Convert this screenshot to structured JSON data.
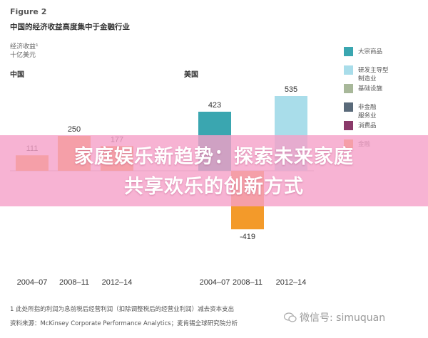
{
  "figure": {
    "label": "Figure 2",
    "title": "中国的经济收益高度集中于金融行业",
    "unit_line1": "经济收益¹",
    "unit_line2": "十亿美元"
  },
  "chart_data": [
    {
      "type": "bar",
      "title": "中国",
      "categories": [
        "2004–07",
        "2008–11",
        "2012–14"
      ],
      "total_labels": [
        "111",
        "250",
        "177"
      ],
      "series": [
        {
          "name": "大宗商品",
          "values": [
            null,
            null,
            null
          ]
        },
        {
          "name": "研发主导型制造业",
          "values": [
            null,
            null,
            null
          ]
        },
        {
          "name": "基础设施",
          "values": [
            null,
            null,
            null
          ]
        },
        {
          "name": "非金融服务业",
          "values": [
            null,
            null,
            null
          ]
        },
        {
          "name": "消费品",
          "values": [
            null,
            null,
            null
          ]
        },
        {
          "name": "金融",
          "values": [
            111,
            250,
            177
          ]
        }
      ],
      "ylim": [
        -419,
        535
      ]
    },
    {
      "type": "bar",
      "title": "美国",
      "categories": [
        "2004–07",
        "2008–11",
        "2012–14"
      ],
      "total_labels": [
        "423",
        "-419",
        "535"
      ],
      "series": [
        {
          "name": "大宗商品",
          "values": [
            423,
            null,
            null
          ]
        },
        {
          "name": "研发主导型制造业",
          "values": [
            null,
            null,
            535
          ]
        },
        {
          "name": "基础设施",
          "values": [
            null,
            null,
            null
          ]
        },
        {
          "name": "非金融服务业",
          "values": [
            null,
            null,
            null
          ]
        },
        {
          "name": "消费品",
          "values": [
            null,
            null,
            null
          ]
        },
        {
          "name": "金融",
          "values": [
            null,
            -419,
            null
          ]
        }
      ],
      "ylim": [
        -419,
        535
      ]
    }
  ],
  "legend": [
    {
      "line1": "大宗商品",
      "line2": "",
      "color": "#3aa6b0"
    },
    {
      "line1": "研发主导型",
      "line2": "制造业",
      "color": "#a9ddea"
    },
    {
      "line1": "基础设施",
      "line2": "",
      "color": "#a8b89a"
    },
    {
      "line1": "非金融",
      "line2": "服务业",
      "color": "#5a6a7a"
    },
    {
      "line1": "消费品",
      "line2": "",
      "color": "#8a3a6a"
    },
    {
      "line1": "金融",
      "line2": "",
      "color": "#f39a2a"
    }
  ],
  "banner": {
    "line1": "家庭娱乐新趋势：探索未来家庭",
    "line2": "共享欢乐的创新方式"
  },
  "footnote": "1 此处所指的利润为息前税后经营利润（扣除调整税后的经营业利润）减去资本支出",
  "source": "资料来源：McKinsey Corporate Performance Analytics；麦肯锡全球研究院分析",
  "watermark": "微信号: simuquan",
  "colors": {
    "banner_bg": "#f5a0c8",
    "axis_line": "#bbbbbb"
  }
}
